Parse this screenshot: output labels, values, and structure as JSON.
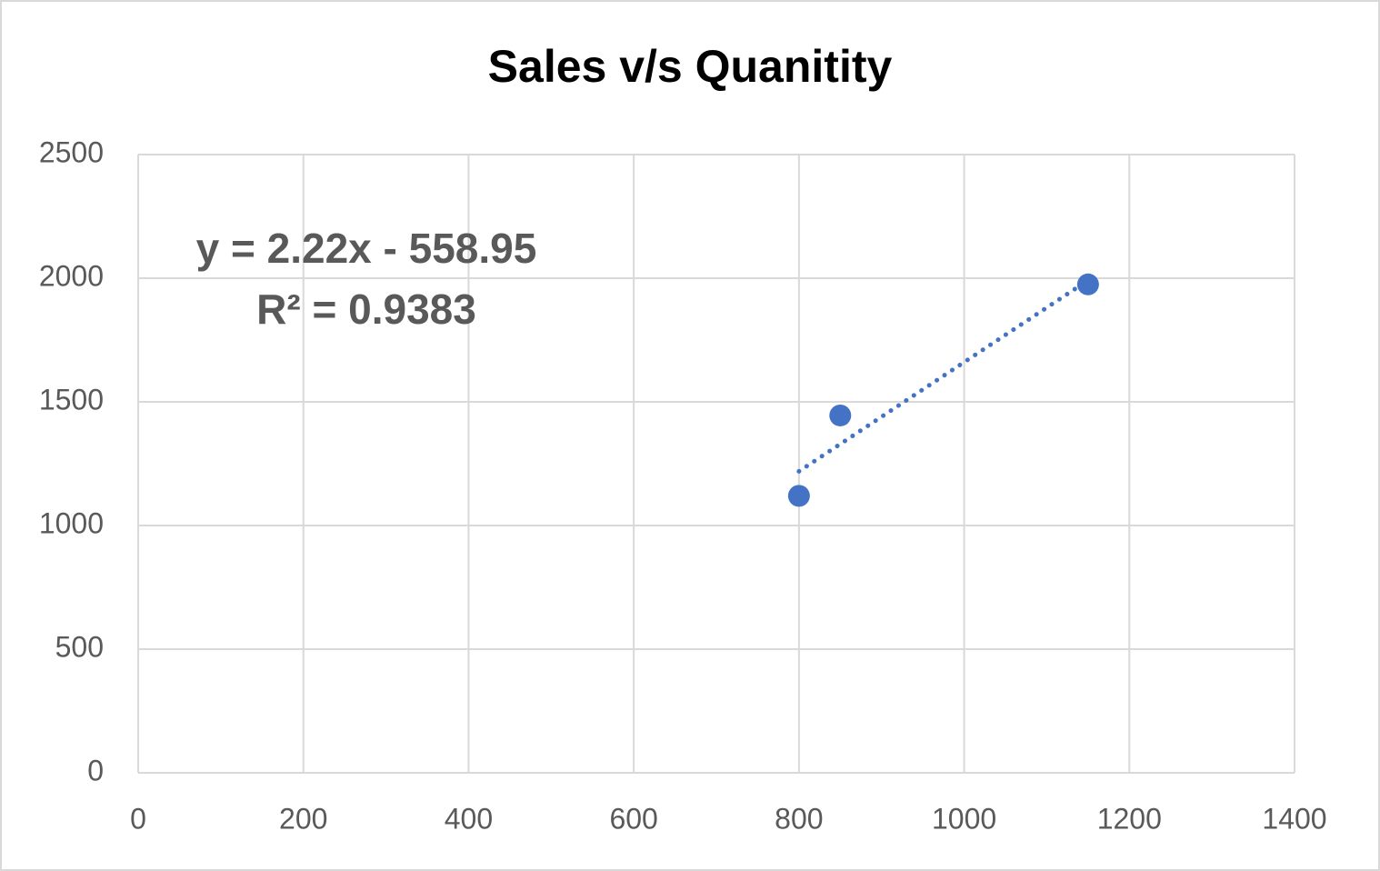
{
  "chart_data": {
    "type": "scatter",
    "title": "Sales v/s Quanitity",
    "series": [
      {
        "x": [
          800,
          850,
          1150
        ],
        "values": [
          1120,
          1445,
          1975
        ],
        "color": "#4472c4"
      }
    ],
    "xlim": [
      0,
      1400
    ],
    "xticks": [
      0,
      200,
      400,
      600,
      800,
      1000,
      1200,
      1400
    ],
    "ylim": [
      0,
      2500
    ],
    "yticks": [
      0,
      500,
      1000,
      1500,
      2000,
      2500
    ],
    "grid": true,
    "trendline": "linear",
    "trendline_style": "dotted",
    "annotations": [
      "y = 2.22x - 558.95",
      "R² = 0.9383"
    ]
  }
}
